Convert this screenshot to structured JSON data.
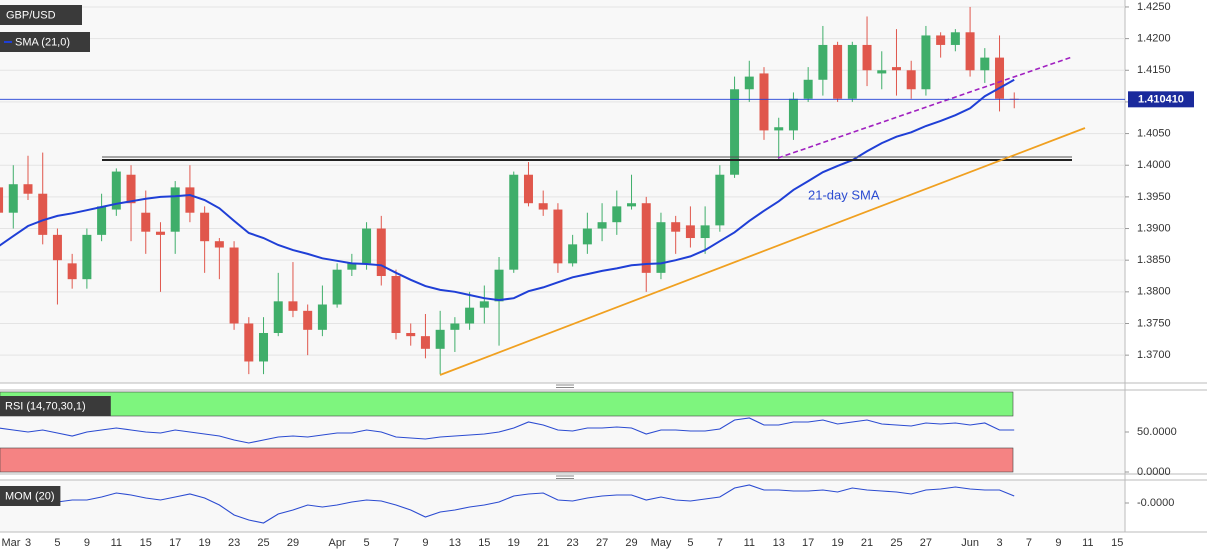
{
  "chart_data": [
    {
      "type": "candlestick",
      "title": "GBP/USD",
      "annotation": "21-day SMA",
      "up_color": "#3fae6a",
      "down_color": "#e0574c",
      "grid": true,
      "categories": [
        "Mar",
        null,
        "3",
        null,
        "5",
        null,
        "9",
        null,
        "11",
        null,
        "15",
        null,
        "17",
        null,
        "19",
        null,
        "23",
        null,
        "25",
        null,
        "29",
        null,
        null,
        "Apr",
        null,
        "5",
        null,
        "7",
        null,
        "9",
        null,
        "13",
        null,
        "15",
        null,
        "19",
        null,
        "21",
        null,
        "23",
        null,
        "27",
        null,
        "29",
        null,
        "May",
        null,
        "5",
        null,
        "7",
        null,
        "11",
        null,
        "13",
        null,
        "17",
        null,
        "19",
        null,
        "21",
        null,
        "25",
        null,
        "27",
        null,
        null,
        "Jun",
        null,
        "3",
        null,
        "7",
        null,
        "9",
        null,
        "11",
        null,
        "15"
      ],
      "open": [
        1.3965,
        1.3925,
        1.397,
        1.3955,
        1.389,
        1.3845,
        1.382,
        1.389,
        1.393,
        1.3985,
        1.3925,
        1.3895,
        1.3895,
        1.3965,
        1.3925,
        1.388,
        1.387,
        1.375,
        1.369,
        1.3735,
        1.3785,
        1.377,
        1.374,
        1.378,
        1.3835,
        1.3845,
        1.39,
        1.3825,
        1.3735,
        1.373,
        1.371,
        1.374,
        1.375,
        1.3775,
        1.3785,
        1.3835,
        1.3985,
        1.394,
        1.393,
        1.3845,
        1.3875,
        1.39,
        1.391,
        1.3935,
        1.394,
        1.383,
        1.391,
        1.3905,
        1.3885,
        1.3905,
        1.3985,
        1.412,
        1.4145,
        1.4055,
        1.4055,
        1.4105,
        1.4135,
        1.419,
        1.4105,
        1.419,
        1.4145,
        1.4155,
        1.415,
        1.412,
        1.4205,
        1.419,
        1.421,
        1.415,
        1.417,
        1.4105,
        null,
        null,
        null,
        null,
        null,
        null,
        null
      ],
      "high": [
        1.399,
        1.4,
        1.4015,
        1.402,
        1.39,
        1.386,
        1.39,
        1.3955,
        1.3995,
        1.4,
        1.396,
        1.391,
        1.3975,
        1.4,
        1.3935,
        1.3885,
        1.388,
        1.376,
        1.376,
        1.383,
        1.3847,
        1.378,
        1.381,
        1.3845,
        1.386,
        1.391,
        1.392,
        1.3835,
        1.375,
        1.3765,
        1.377,
        1.376,
        1.38,
        1.381,
        1.3855,
        1.399,
        1.4005,
        1.396,
        1.394,
        1.389,
        1.3925,
        1.394,
        1.396,
        1.3985,
        1.395,
        1.3925,
        1.392,
        1.3935,
        1.3935,
        1.4,
        1.414,
        1.4165,
        1.4155,
        1.4075,
        1.4115,
        1.4155,
        1.422,
        1.4195,
        1.4195,
        1.4235,
        1.418,
        1.4215,
        1.4165,
        1.422,
        1.421,
        1.4215,
        1.425,
        1.4185,
        1.4205,
        1.4115,
        null,
        null,
        null,
        null,
        null,
        null,
        null
      ],
      "low": [
        1.3915,
        1.39,
        1.3945,
        1.3875,
        1.378,
        1.3805,
        1.3805,
        1.388,
        1.392,
        1.388,
        1.386,
        1.38,
        1.386,
        1.391,
        1.383,
        1.382,
        1.374,
        1.367,
        1.367,
        1.373,
        1.376,
        1.37,
        1.373,
        1.3775,
        1.3825,
        1.3835,
        1.381,
        1.3725,
        1.3715,
        1.3695,
        1.367,
        1.3705,
        1.374,
        1.375,
        1.3715,
        1.383,
        1.3935,
        1.392,
        1.383,
        1.384,
        1.386,
        1.388,
        1.389,
        1.393,
        1.38,
        1.382,
        1.386,
        1.387,
        1.386,
        1.3895,
        1.398,
        1.41,
        1.404,
        1.401,
        1.404,
        1.41,
        1.411,
        1.41,
        1.41,
        1.4125,
        1.412,
        1.411,
        1.4105,
        1.411,
        1.417,
        1.418,
        1.414,
        1.413,
        1.4085,
        1.409,
        null,
        null,
        null,
        null,
        null,
        null,
        null
      ],
      "close": [
        1.3925,
        1.397,
        1.3955,
        1.389,
        1.385,
        1.382,
        1.389,
        1.3935,
        1.399,
        1.394,
        1.3895,
        1.389,
        1.3965,
        1.3925,
        1.388,
        1.387,
        1.375,
        1.369,
        1.3735,
        1.3785,
        1.377,
        1.374,
        1.378,
        1.3835,
        1.3845,
        1.39,
        1.3825,
        1.3735,
        1.373,
        1.371,
        1.374,
        1.375,
        1.3775,
        1.3785,
        1.3835,
        1.3985,
        1.394,
        1.393,
        1.3845,
        1.3875,
        1.39,
        1.391,
        1.3935,
        1.394,
        1.383,
        1.391,
        1.3895,
        1.3885,
        1.3905,
        1.3985,
        1.412,
        1.414,
        1.4055,
        1.406,
        1.4105,
        1.4135,
        1.419,
        1.4105,
        1.419,
        1.415,
        1.415,
        1.415,
        1.412,
        1.4205,
        1.419,
        1.421,
        1.415,
        1.417,
        1.4105,
        1.41041,
        null,
        null,
        null,
        null,
        null,
        null,
        null
      ],
      "series": [
        {
          "name": "SMA (21,0)",
          "color": "#1f3fd6",
          "values": [
            1.3872,
            1.3888,
            1.3904,
            1.3913,
            1.392,
            1.3924,
            1.3929,
            1.3934,
            1.3939,
            1.3943,
            1.3947,
            1.395,
            1.3951,
            1.3953,
            1.3945,
            1.3932,
            1.3912,
            1.3893,
            1.3885,
            1.3874,
            1.3866,
            1.386,
            1.3853,
            1.3849,
            1.3845,
            1.3844,
            1.3842,
            1.383,
            1.3819,
            1.3809,
            1.3803,
            1.38,
            1.3795,
            1.379,
            1.3787,
            1.379,
            1.3801,
            1.3807,
            1.3815,
            1.3823,
            1.3828,
            1.3833,
            1.3837,
            1.3842,
            1.3844,
            1.3845,
            1.385,
            1.3856,
            1.3866,
            1.388,
            1.3894,
            1.3912,
            1.3928,
            1.3943,
            1.3961,
            1.3975,
            1.3989,
            1.3999,
            1.4008,
            1.4022,
            1.4035,
            1.4045,
            1.4052,
            1.4062,
            1.407,
            1.4079,
            1.409,
            1.4109,
            1.4122,
            1.4135,
            null,
            null,
            null,
            null,
            null,
            null,
            null
          ]
        }
      ],
      "last": {
        "value": 1.41041,
        "label": "1.410410"
      },
      "ylim": [
        1.3656,
        1.4261
      ],
      "yticks": [
        {
          "value": 1.425,
          "label": "1.4250"
        },
        {
          "value": 1.42,
          "label": "1.4200"
        },
        {
          "value": 1.415,
          "label": "1.4150"
        },
        {
          "value": 1.41,
          "label": "1.4100"
        },
        {
          "value": 1.405,
          "label": "1.4050"
        },
        {
          "value": 1.4,
          "label": "1.4000"
        },
        {
          "value": 1.395,
          "label": "1.3950"
        },
        {
          "value": 1.39,
          "label": "1.3900"
        },
        {
          "value": 1.385,
          "label": "1.3850"
        },
        {
          "value": 1.38,
          "label": "1.3800"
        },
        {
          "value": 1.375,
          "label": "1.3750"
        },
        {
          "value": 1.37,
          "label": "1.3700"
        }
      ]
    },
    {
      "type": "line",
      "title": "RSI (14,70,30,1)",
      "color": "#2b4bd1",
      "values": [
        55,
        52.5,
        50,
        52.5,
        48.8,
        45,
        50,
        52.5,
        55,
        52.5,
        50,
        48.8,
        52.5,
        50,
        47.5,
        45,
        40,
        36.3,
        40,
        43.8,
        45,
        43.8,
        46.3,
        48.8,
        48.8,
        52.5,
        50,
        43.8,
        42.5,
        41.3,
        43.8,
        45,
        46.3,
        47.5,
        50,
        55,
        62.5,
        58.8,
        52.5,
        51.3,
        55,
        55,
        56.3,
        55,
        47.5,
        52.5,
        52.5,
        51.3,
        51.3,
        53.8,
        65,
        67.5,
        58.8,
        58.8,
        62.5,
        62.5,
        65,
        60,
        62.5,
        65,
        60,
        58.8,
        57.5,
        61.3,
        60,
        61.3,
        58.8,
        61.3,
        52.5,
        52.5,
        null,
        null,
        null,
        null,
        null,
        null,
        null
      ],
      "bands": [
        {
          "from": 70,
          "to": 100,
          "color": "#7ef57e"
        },
        {
          "from": 0,
          "to": 30,
          "color": "#f58383"
        }
      ],
      "ylim": [
        0,
        100
      ],
      "yticks": [
        {
          "value": 50,
          "label": "50.0000"
        },
        {
          "value": 0,
          "label": "0.0000"
        }
      ]
    },
    {
      "type": "line",
      "title": "MOM (20)",
      "color": "#2b4bd1",
      "values": [
        0.00375,
        0.00625,
        0.0075,
        0.00375,
        0.00125,
        0.00375,
        0.00375,
        0.0075,
        0.0125,
        0.01,
        0.00625,
        0.00375,
        0.0075,
        0.01125,
        0.00625,
        -0.0025,
        -0.015,
        -0.02125,
        -0.025,
        -0.01375,
        -0.00875,
        -0.0025,
        -0.005,
        -0.0025,
        0.00125,
        0.00375,
        0.0025,
        -0.0025,
        -0.00875,
        -0.0175,
        -0.01125,
        -0.00875,
        -0.005,
        -0.0025,
        0.00125,
        0.00875,
        0.01125,
        0.0125,
        0.00375,
        0.0025,
        0.00625,
        0.00875,
        0.01,
        0.01,
        0.00375,
        0.0075,
        0.00375,
        0.0025,
        0.005,
        0.0075,
        0.01875,
        0.0225,
        0.01625,
        0.01625,
        0.015,
        0.015,
        0.01625,
        0.01375,
        0.01875,
        0.01625,
        0.015,
        0.01375,
        0.01125,
        0.01625,
        0.0175,
        0.02,
        0.0175,
        0.01625,
        0.01625,
        0.00875,
        null,
        null,
        null,
        null,
        null,
        null,
        null
      ],
      "ylim": [
        -0.03625,
        0.02625
      ],
      "yticks": [
        {
          "value": 0,
          "label": "-0.0000"
        }
      ]
    }
  ]
}
